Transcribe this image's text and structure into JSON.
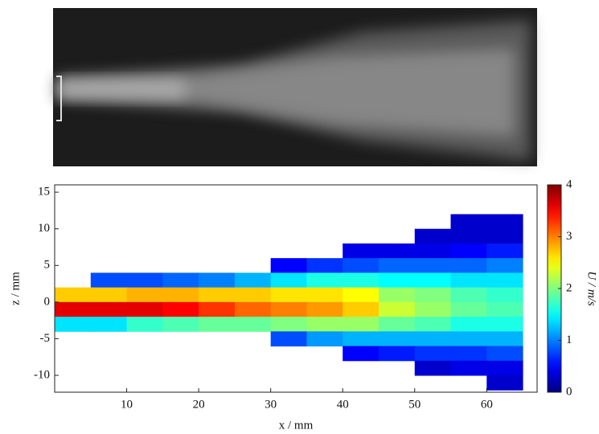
{
  "chart_data": {
    "type": "heatmap",
    "xlabel": "x / mm",
    "ylabel": "z / mm",
    "colorbar_label": "U / m/s",
    "colormap": "jet",
    "xlim": [
      0,
      67
    ],
    "ylim": [
      -12.3,
      16
    ],
    "xticks": [
      10,
      20,
      30,
      40,
      50,
      60
    ],
    "yticks": [
      -10,
      -5,
      0,
      5,
      10,
      15
    ],
    "clim": [
      0,
      4
    ],
    "cticks": [
      0,
      1,
      2,
      3,
      4
    ],
    "x": [
      2.5,
      7.5,
      12.5,
      17.5,
      22.5,
      27.5,
      32.5,
      37.5,
      42.5,
      47.5,
      52.5,
      57.5,
      62.5
    ],
    "z": [
      11,
      9,
      7,
      5,
      3,
      1,
      -1,
      -3,
      -5,
      -7,
      -9,
      -11
    ],
    "values": [
      [
        null,
        null,
        null,
        null,
        null,
        null,
        null,
        null,
        null,
        null,
        null,
        0.3,
        0.3
      ],
      [
        null,
        null,
        null,
        null,
        null,
        null,
        null,
        null,
        null,
        null,
        0.3,
        0.3,
        0.3
      ],
      [
        null,
        null,
        null,
        null,
        null,
        null,
        null,
        null,
        0.4,
        0.4,
        0.4,
        0.5,
        0.6
      ],
      [
        null,
        null,
        null,
        null,
        null,
        null,
        0.5,
        0.7,
        0.8,
        0.9,
        0.9,
        0.9,
        1.0
      ],
      [
        null,
        0.8,
        0.8,
        0.9,
        1.0,
        1.2,
        1.4,
        1.6,
        1.6,
        1.5,
        1.5,
        1.4,
        1.4
      ],
      [
        2.7,
        2.7,
        2.8,
        2.8,
        2.7,
        2.7,
        2.6,
        2.6,
        2.5,
        2.1,
        2.0,
        1.8,
        1.7
      ],
      [
        3.6,
        3.6,
        3.6,
        3.5,
        3.3,
        3.1,
        3.0,
        2.9,
        2.7,
        2.3,
        2.1,
        1.9,
        1.8
      ],
      [
        1.4,
        1.4,
        1.7,
        1.8,
        1.9,
        1.9,
        2.0,
        2.1,
        2.1,
        1.9,
        1.8,
        1.6,
        1.6
      ],
      [
        null,
        null,
        null,
        null,
        null,
        null,
        0.8,
        1.1,
        1.2,
        1.2,
        1.2,
        1.2,
        1.2
      ],
      [
        null,
        null,
        null,
        null,
        null,
        null,
        null,
        null,
        0.5,
        0.6,
        0.7,
        0.7,
        0.8
      ],
      [
        null,
        null,
        null,
        null,
        null,
        null,
        null,
        null,
        null,
        null,
        0.3,
        0.4,
        0.4
      ],
      [
        null,
        null,
        null,
        null,
        null,
        null,
        null,
        null,
        null,
        null,
        null,
        null,
        0.3
      ]
    ]
  }
}
